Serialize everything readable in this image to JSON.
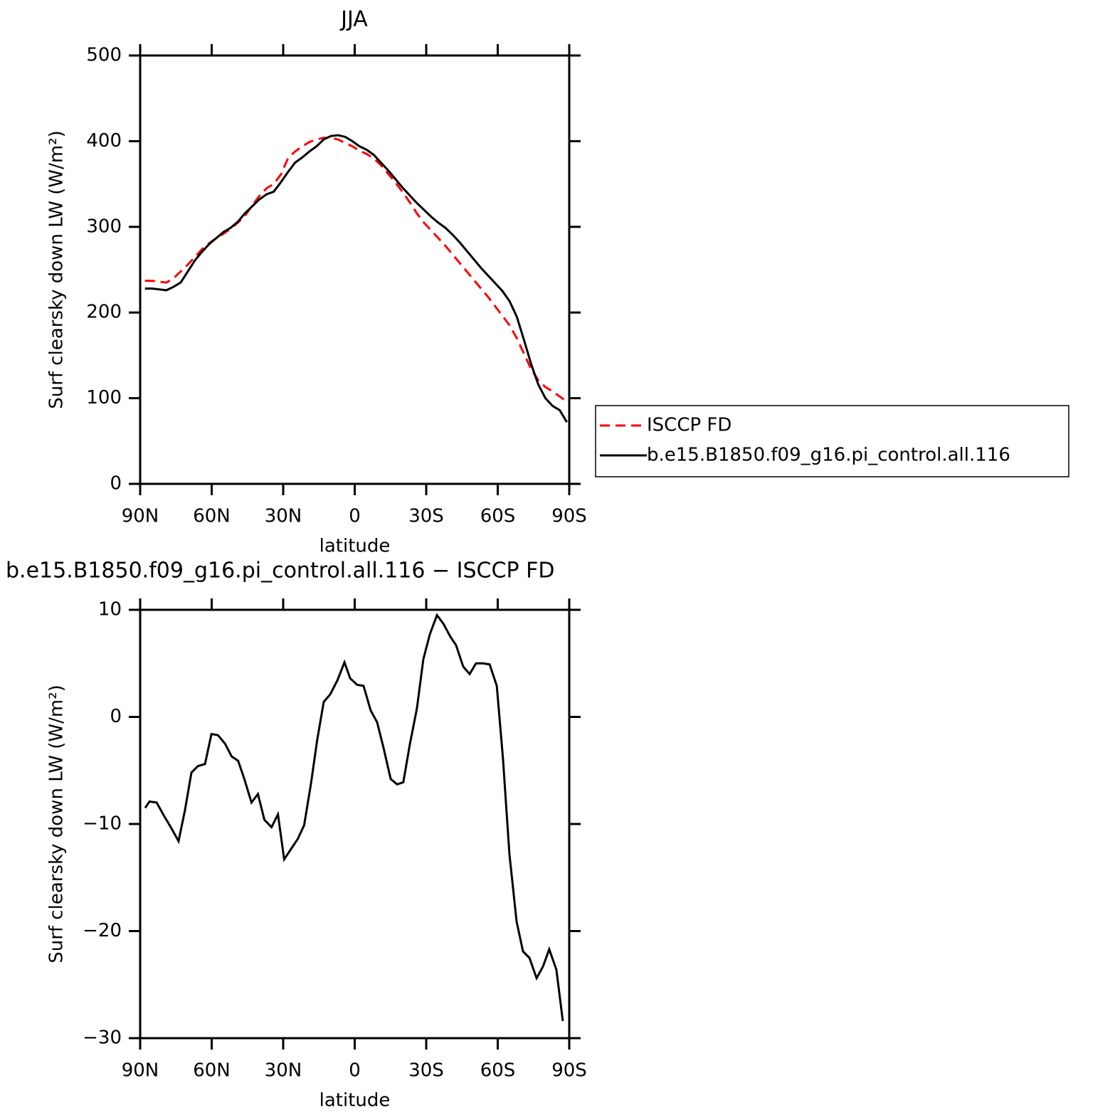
{
  "chart_data": [
    {
      "type": "line",
      "title": "JJA",
      "ylabel": "Surf clearsky down LW (W/m²)",
      "xlabel": "latitude",
      "x": [
        88,
        85,
        82,
        79,
        76,
        73,
        70,
        67,
        64,
        61,
        58,
        55,
        52,
        49,
        46,
        43,
        40,
        37,
        34,
        31,
        28,
        25,
        22,
        19,
        16,
        13,
        10,
        7,
        4,
        1,
        -2,
        -5,
        -8,
        -11,
        -14,
        -17,
        -20,
        -23,
        -26,
        -29,
        -32,
        -35,
        -38,
        -41,
        -44,
        -47,
        -50,
        -53,
        -56,
        -59,
        -62,
        -65,
        -68,
        -71,
        -74,
        -77,
        -80,
        -83,
        -86,
        -89
      ],
      "series": [
        {
          "name": "ISCCP FD",
          "color": "#ff0000",
          "linestyle": "dashed",
          "values": [
            237,
            237,
            236,
            235,
            240,
            248,
            256,
            265,
            274,
            281,
            287,
            292,
            298,
            305,
            313,
            325,
            336,
            345,
            350,
            361,
            380,
            388,
            394,
            399,
            402,
            404,
            404,
            402,
            398,
            394,
            389,
            385,
            380,
            372,
            362,
            352,
            341,
            329,
            316,
            305,
            296,
            287,
            278,
            268,
            258,
            248,
            238,
            228,
            218,
            207,
            196,
            185,
            170,
            152,
            134,
            121,
            113,
            108,
            102,
            96
          ]
        },
        {
          "name": "b.e15.B1850.f09_g16.pi_control.all.116",
          "color": "#000000",
          "linestyle": "solid",
          "values": [
            228,
            228,
            227,
            226,
            230,
            235,
            248,
            261,
            271,
            280,
            287,
            294,
            299,
            306,
            316,
            324,
            332,
            338,
            341,
            352,
            364,
            375,
            381,
            388,
            394,
            402,
            406,
            407,
            405,
            400,
            394,
            390,
            384,
            375,
            366,
            356,
            346,
            337,
            328,
            320,
            312,
            305,
            299,
            291,
            282,
            272,
            262,
            252,
            243,
            234,
            225,
            213,
            195,
            168,
            140,
            116,
            100,
            91,
            86,
            72
          ]
        }
      ],
      "xlim": [
        90,
        -90
      ],
      "xticks": [
        {
          "value": 90,
          "label": "90N"
        },
        {
          "value": 60,
          "label": "60N"
        },
        {
          "value": 30,
          "label": "30N"
        },
        0,
        {
          "value": -30,
          "label": "30S"
        },
        {
          "value": -60,
          "label": "60S"
        },
        {
          "value": -90,
          "label": "90S"
        }
      ],
      "ylim": [
        0,
        500
      ],
      "yticks": [
        0,
        100,
        200,
        300,
        400,
        500
      ],
      "grid": false,
      "legend": "right"
    },
    {
      "type": "line",
      "title": "b.e15.B1850.f09_g16.pi_control.all.116 − ISCCP FD",
      "ylabel": "Surf clearsky down LW (W/m²)",
      "xlabel": "latitude",
      "x": [
        87.9,
        86.1,
        83.1,
        80.1,
        76.9,
        73.9,
        71.2,
        68.5,
        65.8,
        62.8,
        60.1,
        57.4,
        54.4,
        51.6,
        48.9,
        46.3,
        43.3,
        40.6,
        37.9,
        34.9,
        32.2,
        29.6,
        26.9,
        23.9,
        21.2,
        18.4,
        15.7,
        13.0,
        10.3,
        7.3,
        4.3,
        1.9,
        -1.0,
        -3.7,
        -6.7,
        -9.4,
        -12.1,
        -15.1,
        -17.8,
        -20.4,
        -23.1,
        -26.1,
        -28.8,
        -31.5,
        -34.5,
        -37.2,
        -40.1,
        -42.5,
        -45.5,
        -48.2,
        -50.9,
        -53.9,
        -56.6,
        -59.6,
        -62.2,
        -64.9,
        -67.9,
        -70.6,
        -73.3,
        -76.3,
        -79.0,
        -81.6,
        -84.6,
        -87.3
      ],
      "series": [
        {
          "name": "b.e15.B1850.f09_g16.pi_control.all.116 − ISCCP FD",
          "color": "#000000",
          "linestyle": "solid",
          "values": [
            -8.5,
            -7.9,
            -8.0,
            -9.2,
            -10.4,
            -11.6,
            -8.7,
            -5.2,
            -4.6,
            -4.4,
            -1.6,
            -1.7,
            -2.5,
            -3.7,
            -4.1,
            -5.8,
            -8.0,
            -7.2,
            -9.6,
            -10.3,
            -9.1,
            -13.3,
            -12.4,
            -11.4,
            -10.1,
            -6.3,
            -2.1,
            1.4,
            2.1,
            3.4,
            5.1,
            3.6,
            3.0,
            2.9,
            0.6,
            -0.5,
            -2.9,
            -5.8,
            -6.3,
            -6.1,
            -2.6,
            0.8,
            5.4,
            7.7,
            9.5,
            8.7,
            7.5,
            6.7,
            4.7,
            4.0,
            5.0,
            5.0,
            4.9,
            2.9,
            -3.9,
            -12.8,
            -19.1,
            -21.9,
            -22.5,
            -24.4,
            -23.3,
            -21.7,
            -23.6,
            -28.4
          ]
        }
      ],
      "xlim": [
        90,
        -90
      ],
      "xticks": [
        {
          "value": 90,
          "label": "90N"
        },
        {
          "value": 60,
          "label": "60N"
        },
        {
          "value": 30,
          "label": "30N"
        },
        0,
        {
          "value": -30,
          "label": "30S"
        },
        {
          "value": -60,
          "label": "60S"
        },
        {
          "value": -90,
          "label": "90S"
        }
      ],
      "ylim": [
        -30,
        10
      ],
      "yticks": [
        {
          "value": -30,
          "label": "−30"
        },
        {
          "value": -20,
          "label": "−20"
        },
        {
          "value": -10,
          "label": "−10"
        },
        0,
        10
      ],
      "grid": false
    }
  ]
}
